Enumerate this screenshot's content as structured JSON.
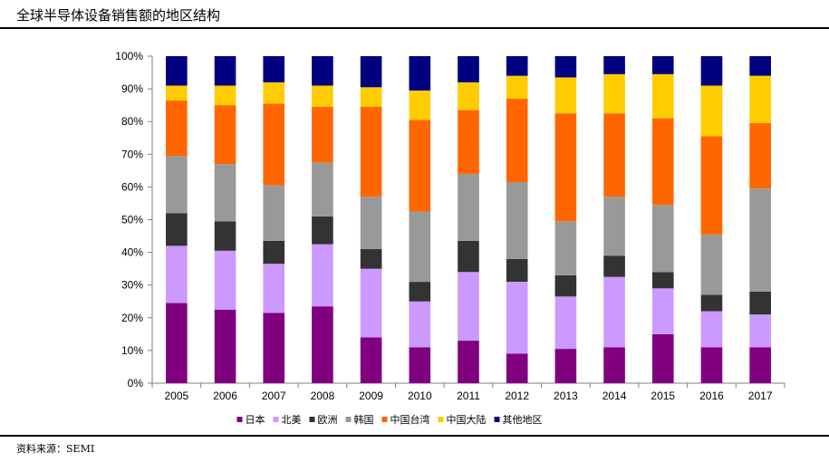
{
  "title": "全球半导体设备销售额的地区结构",
  "source": "资料来源：SEMI",
  "colors": {
    "日本": "#800080",
    "北美": "#CC99FF",
    "欧洲": "#333333",
    "韩国": "#999999",
    "中国台湾": "#FF6600",
    "中国大陆": "#FFCC00",
    "其他地区": "#000080"
  },
  "chart_data": {
    "type": "bar",
    "stacked": true,
    "title": "全球半导体设备销售额的地区结构",
    "xlabel": "",
    "ylabel": "",
    "ylim": [
      0,
      100
    ],
    "yticks": [
      "0%",
      "10%",
      "20%",
      "30%",
      "40%",
      "50%",
      "60%",
      "70%",
      "80%",
      "90%",
      "100%"
    ],
    "categories": [
      "2005",
      "2006",
      "2007",
      "2008",
      "2009",
      "2010",
      "2011",
      "2012",
      "2013",
      "2014",
      "2015",
      "2016",
      "2017"
    ],
    "legend_position": "bottom",
    "grid": false,
    "series": [
      {
        "name": "日本",
        "values": [
          24.5,
          22.5,
          21.5,
          23.5,
          14.0,
          11.0,
          13.0,
          9.0,
          10.5,
          11.0,
          15.0,
          11.0,
          11.0
        ]
      },
      {
        "name": "北美",
        "values": [
          17.5,
          18.0,
          15.0,
          19.0,
          21.0,
          14.0,
          21.0,
          22.0,
          16.0,
          21.5,
          14.0,
          11.0,
          10.0
        ]
      },
      {
        "name": "欧洲",
        "values": [
          10.0,
          9.0,
          7.0,
          8.5,
          6.0,
          6.0,
          9.5,
          7.0,
          6.5,
          6.5,
          5.0,
          5.0,
          7.0
        ]
      },
      {
        "name": "韩国",
        "values": [
          17.5,
          17.5,
          17.0,
          16.5,
          16.0,
          21.5,
          20.5,
          23.5,
          16.5,
          18.0,
          20.5,
          18.5,
          31.5
        ]
      },
      {
        "name": "中国台湾",
        "values": [
          17.0,
          18.0,
          25.0,
          17.0,
          27.5,
          28.0,
          19.5,
          25.5,
          33.0,
          25.5,
          26.5,
          30.0,
          20.0
        ]
      },
      {
        "name": "中国大陆",
        "values": [
          4.5,
          6.0,
          6.5,
          6.5,
          6.0,
          9.0,
          8.5,
          7.0,
          11.0,
          12.0,
          13.5,
          15.5,
          14.5
        ]
      },
      {
        "name": "其他地区",
        "values": [
          9.0,
          9.0,
          8.0,
          9.0,
          9.5,
          10.5,
          8.0,
          6.0,
          6.5,
          5.5,
          5.5,
          9.0,
          6.0
        ]
      }
    ]
  }
}
